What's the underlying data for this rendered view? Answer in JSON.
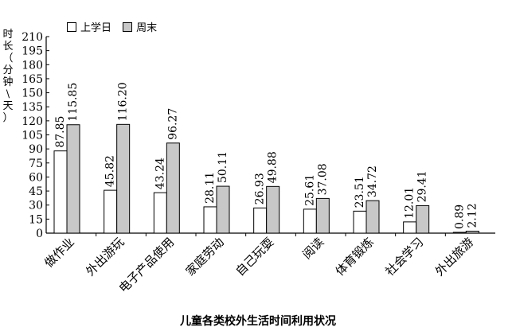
{
  "chart_data": {
    "type": "bar",
    "title": "儿童各类校外生活时间利用状况",
    "ylabel": "时长（分钟\\天）",
    "xlabel": "",
    "ylim": [
      0,
      210
    ],
    "yticks": [
      0,
      15,
      30,
      45,
      60,
      75,
      90,
      105,
      120,
      135,
      150,
      165,
      180,
      195,
      210
    ],
    "grid": false,
    "legend_position": "top-left",
    "categories": [
      "做作业",
      "外出游玩",
      "电子产品使用",
      "家庭劳动",
      "自己玩耍",
      "阅读",
      "体育锻炼",
      "社会学习",
      "外出旅游"
    ],
    "series": [
      {
        "name": "上学日",
        "color": "#ffffff",
        "values": [
          87.85,
          45.82,
          43.24,
          28.11,
          26.93,
          25.61,
          23.51,
          12.01,
          0.89
        ],
        "labels": [
          "87.85",
          "45.82",
          "43.24",
          "28.11",
          "26.93",
          "25.61",
          "23.51",
          "12.01",
          "0.89"
        ]
      },
      {
        "name": "周末",
        "color": "#c8c8c8",
        "values": [
          115.85,
          116.2,
          96.27,
          50.11,
          49.88,
          37.08,
          34.72,
          29.41,
          2.12
        ],
        "labels": [
          "115.85",
          "116.20",
          "96.27",
          "50.11",
          "49.88",
          "37.08",
          "34.72",
          "29.41",
          "2.12"
        ]
      }
    ]
  }
}
